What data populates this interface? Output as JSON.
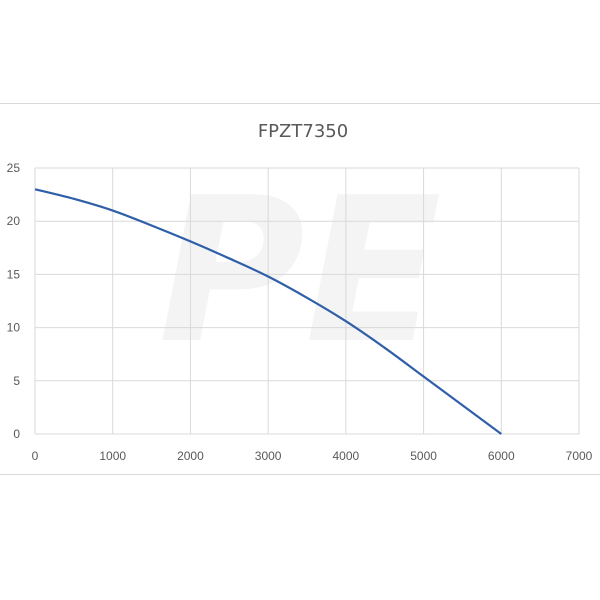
{
  "chart_data": {
    "type": "line",
    "title": "FPZT7350",
    "xlabel": "",
    "ylabel": "",
    "xlim": [
      0,
      7000
    ],
    "ylim": [
      0,
      25
    ],
    "x_ticks": [
      0,
      1000,
      2000,
      3000,
      4000,
      5000,
      6000,
      7000
    ],
    "y_ticks": [
      0,
      5,
      10,
      15,
      20,
      25
    ],
    "grid": true,
    "legend": "none",
    "series": [
      {
        "color": "#2f5fa8",
        "x": [
          0,
          500,
          1000,
          1500,
          2000,
          2500,
          3000,
          3500,
          4000,
          4500,
          5000,
          5500,
          6000
        ],
        "y": [
          23,
          22.1,
          21,
          19.6,
          18.1,
          16.5,
          14.8,
          12.8,
          10.6,
          8.1,
          5.4,
          2.7,
          0
        ]
      }
    ]
  },
  "watermark": {
    "text": "PE"
  }
}
